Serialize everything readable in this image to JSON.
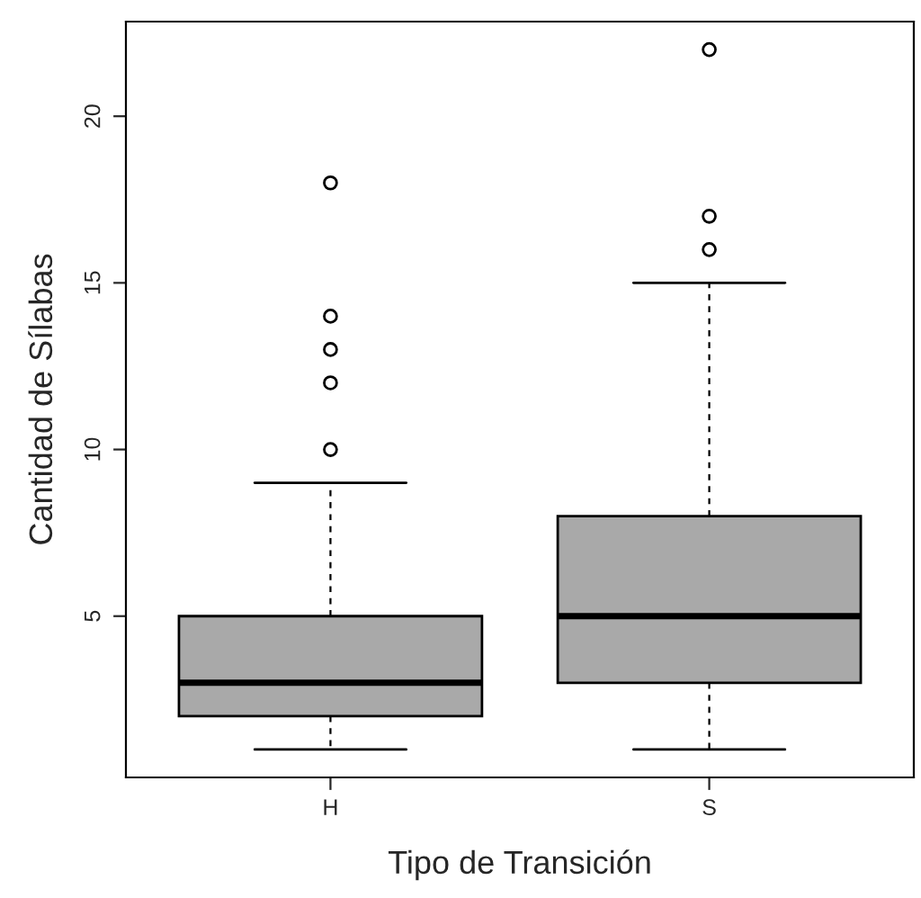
{
  "chart_data": {
    "type": "box",
    "xlabel": "Tipo de Transición",
    "ylabel": "Cantidad de Sílabas",
    "categories": [
      "H",
      "S"
    ],
    "series": [
      {
        "color": "#a9a9a9",
        "boxes": [
          {
            "low": 1,
            "q1": 2,
            "median": 3,
            "q3": 5,
            "high": 9,
            "outliers": [
              10,
              12,
              13,
              14,
              18
            ]
          },
          {
            "low": 1,
            "q1": 3,
            "median": 5,
            "q3": 8,
            "high": 15,
            "outliers": [
              16,
              17,
              22
            ]
          }
        ]
      }
    ],
    "ylim": [
      0.16,
      22.84
    ],
    "yticks": [
      5,
      10,
      15,
      20
    ],
    "grid": false
  }
}
